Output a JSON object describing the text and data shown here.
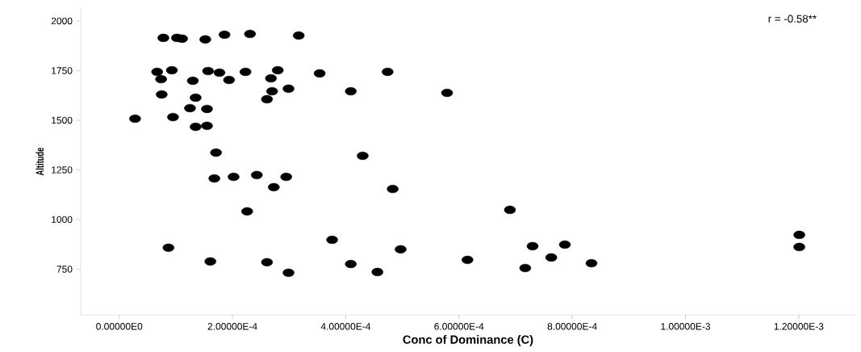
{
  "chart_data": {
    "type": "scatter",
    "xlabel": "Conc of Dominance (C)",
    "ylabel": "Altitude",
    "annotations": [
      "r = -0.58**"
    ],
    "color": "#000000",
    "xlim": [
      -6.8e-05,
      0.0013
    ],
    "ylim": [
      520,
      2065
    ],
    "xticks": [
      {
        "value": 0,
        "label": "0.00000E0"
      },
      {
        "value": 0.0002,
        "label": "2.00000E-4"
      },
      {
        "value": 0.0004,
        "label": "4.00000E-4"
      },
      {
        "value": 0.0006,
        "label": "6.00000E-4"
      },
      {
        "value": 0.0008,
        "label": "8.00000E-4"
      },
      {
        "value": 0.001,
        "label": "1.00000E-3"
      },
      {
        "value": 0.0012,
        "label": "1.20000E-3"
      }
    ],
    "yticks": [
      750,
      1000,
      1250,
      1500,
      1750,
      2000
    ],
    "x": [
      7.8e-05,
      0.000102,
      0.000111,
      0.000152,
      0.000186,
      0.000231,
      0.000317,
      6.7e-05,
      9.3e-05,
      0.000157,
      0.000177,
      0.000223,
      0.00028,
      0.000354,
      7.4e-05,
      0.00013,
      0.000194,
      0.000268,
      7.5e-05,
      0.000135,
      0.00027,
      0.000299,
      0.000261,
      0.000125,
      0.000155,
      2.8e-05,
      9.5e-05,
      0.000135,
      0.000155,
      0.000171,
      0.000474,
      0.000409,
      0.000579,
      0.00043,
      0.000483,
      0.00069,
      0.000376,
      0.000409,
      0.000456,
      0.000497,
      0.000615,
      0.00073,
      0.000787,
      0.000763,
      0.000717,
      0.000168,
      0.000202,
      0.000243,
      0.000295,
      0.000273,
      0.000226,
      8.7e-05,
      0.000161,
      0.000261,
      0.000299,
      0.000834,
      0.001201,
      0.001201
    ],
    "values": [
      1915,
      1915,
      1911,
      1907,
      1931,
      1935,
      1927,
      1744,
      1752,
      1748,
      1740,
      1744,
      1752,
      1736,
      1707,
      1699,
      1703,
      1711,
      1630,
      1614,
      1646,
      1659,
      1606,
      1561,
      1557,
      1508,
      1516,
      1467,
      1472,
      1337,
      1744,
      1646,
      1638,
      1321,
      1154,
      1049,
      898,
      776,
      736,
      850,
      797,
      866,
      874,
      809,
      756,
      1207,
      1215,
      1224,
      1215,
      1163,
      1041,
      858,
      789,
      785,
      732,
      780,
      923,
      862
    ]
  }
}
